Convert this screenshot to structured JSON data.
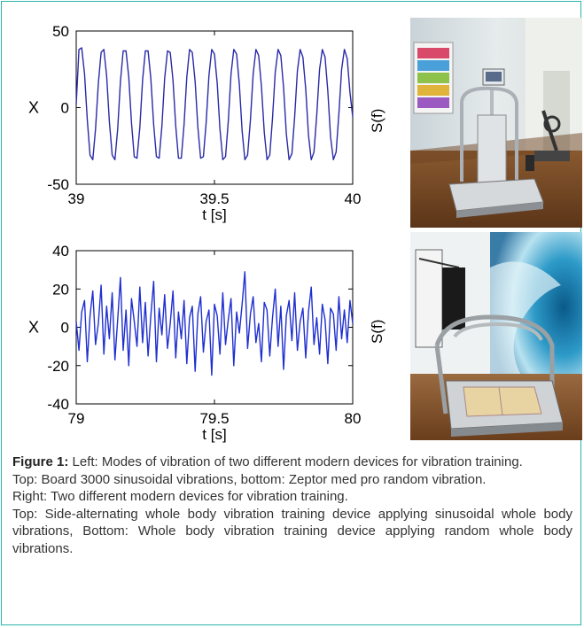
{
  "chart_data": [
    {
      "type": "line",
      "title": "",
      "xlabel": "t [s]",
      "ylabel": "X",
      "xlim": [
        39,
        40
      ],
      "ylim": [
        -50,
        50
      ],
      "xticks": [
        "39",
        "39.5",
        "40"
      ],
      "yticks": [
        "50",
        "0",
        "-50"
      ],
      "grid": false,
      "series": [
        {
          "color": "#2a2aa8",
          "x": [
            39.0,
            39.01,
            39.02,
            39.03,
            39.04,
            39.05,
            39.06,
            39.07,
            39.08,
            39.09,
            39.1,
            39.11,
            39.12,
            39.13,
            39.14,
            39.15,
            39.16,
            39.17,
            39.18,
            39.19,
            39.2,
            39.21,
            39.22,
            39.23,
            39.24,
            39.25,
            39.26,
            39.27,
            39.28,
            39.29,
            39.3,
            39.31,
            39.32,
            39.33,
            39.34,
            39.35,
            39.36,
            39.37,
            39.38,
            39.39,
            39.4,
            39.41,
            39.42,
            39.43,
            39.44,
            39.45,
            39.46,
            39.47,
            39.48,
            39.49,
            39.5,
            39.51,
            39.52,
            39.53,
            39.54,
            39.55,
            39.56,
            39.57,
            39.58,
            39.59,
            39.6,
            39.61,
            39.62,
            39.63,
            39.64,
            39.65,
            39.66,
            39.67,
            39.68,
            39.69,
            39.7,
            39.71,
            39.72,
            39.73,
            39.74,
            39.75,
            39.76,
            39.77,
            39.78,
            39.79,
            39.8,
            39.81,
            39.82,
            39.83,
            39.84,
            39.85,
            39.86,
            39.87,
            39.88,
            39.89,
            39.9,
            39.91,
            39.92,
            39.93,
            39.94,
            39.95,
            39.96,
            39.97,
            39.98,
            39.99,
            40.0
          ],
          "y": [
            2,
            38,
            39,
            22,
            -8,
            -31,
            -34,
            -14,
            16,
            36,
            38,
            21,
            -9,
            -31,
            -34,
            -14,
            17,
            37,
            37,
            20,
            -10,
            -32,
            -33,
            -13,
            18,
            37,
            37,
            19,
            -11,
            -32,
            -33,
            -12,
            19,
            37,
            36,
            18,
            -12,
            -33,
            -33,
            -11,
            20,
            38,
            36,
            17,
            -13,
            -33,
            -32,
            -10,
            21,
            38,
            35,
            16,
            -14,
            -34,
            -32,
            -9,
            22,
            38,
            35,
            15,
            -15,
            -34,
            -31,
            -8,
            22,
            38,
            34,
            14,
            -16,
            -34,
            -31,
            -7,
            23,
            38,
            34,
            13,
            -17,
            -34,
            -30,
            -6,
            24,
            38,
            33,
            12,
            -18,
            -34,
            -29,
            -5,
            25,
            38,
            33,
            11,
            -19,
            -34,
            -29,
            -4,
            25,
            38,
            32,
            10,
            -6
          ]
        }
      ]
    },
    {
      "type": "line",
      "title": "",
      "xlabel": "t [s]",
      "ylabel": "X",
      "xlim": [
        79,
        80
      ],
      "ylim": [
        -40,
        40
      ],
      "xticks": [
        "79",
        "79.5",
        "80"
      ],
      "yticks": [
        "40",
        "20",
        "0",
        "-20",
        "-40"
      ],
      "grid": false,
      "series": [
        {
          "color": "#1f2fd0",
          "x": [
            79.0,
            79.01,
            79.02,
            79.03,
            79.04,
            79.05,
            79.06,
            79.07,
            79.08,
            79.09,
            79.1,
            79.11,
            79.12,
            79.13,
            79.14,
            79.15,
            79.16,
            79.17,
            79.18,
            79.19,
            79.2,
            79.21,
            79.22,
            79.23,
            79.24,
            79.25,
            79.26,
            79.27,
            79.28,
            79.29,
            79.3,
            79.31,
            79.32,
            79.33,
            79.34,
            79.35,
            79.36,
            79.37,
            79.38,
            79.39,
            79.4,
            79.41,
            79.42,
            79.43,
            79.44,
            79.45,
            79.46,
            79.47,
            79.48,
            79.49,
            79.5,
            79.51,
            79.52,
            79.53,
            79.54,
            79.55,
            79.56,
            79.57,
            79.58,
            79.59,
            79.6,
            79.61,
            79.62,
            79.63,
            79.64,
            79.65,
            79.66,
            79.67,
            79.68,
            79.69,
            79.7,
            79.71,
            79.72,
            79.73,
            79.74,
            79.75,
            79.76,
            79.77,
            79.78,
            79.79,
            79.8,
            79.81,
            79.82,
            79.83,
            79.84,
            79.85,
            79.86,
            79.87,
            79.88,
            79.89,
            79.9,
            79.91,
            79.92,
            79.93,
            79.94,
            79.95,
            79.96,
            79.97,
            79.98,
            79.99,
            80.0
          ],
          "y": [
            3,
            -12,
            8,
            14,
            -18,
            6,
            19,
            -9,
            2,
            22,
            -14,
            11,
            -6,
            18,
            -17,
            4,
            26,
            -12,
            9,
            -20,
            15,
            3,
            -10,
            21,
            -8,
            13,
            -15,
            6,
            24,
            -18,
            10,
            -4,
            17,
            -11,
            2,
            19,
            -16,
            8,
            -6,
            14,
            -19,
            5,
            11,
            -23,
            7,
            16,
            -13,
            3,
            9,
            -25,
            12,
            6,
            -14,
            18,
            -9,
            4,
            15,
            -20,
            8,
            -3,
            12,
            29,
            -11,
            7,
            16,
            -8,
            2,
            -18,
            13,
            9,
            -15,
            5,
            20,
            -10,
            11,
            -22,
            6,
            14,
            -7,
            18,
            -12,
            3,
            10,
            -16,
            8,
            21,
            -9,
            5,
            -14,
            12,
            4,
            -19,
            10,
            7,
            -12,
            16,
            -6,
            9,
            -8,
            14,
            2
          ]
        }
      ]
    }
  ],
  "photos": [
    {
      "side_label": "S(f)",
      "description_icon": "vibration-board-device-photo"
    },
    {
      "side_label": "S(f)",
      "description_icon": "walk-in-vibration-device-photo"
    }
  ],
  "caption": {
    "label": "Figure 1:",
    "p1": " Left: Modes of vibration of two different modern devices for vibration training.",
    "p2": "Top: Board 3000 sinusoidal vibrations, bottom: Zeptor med pro random vibration.",
    "p3": "Right: Two different modern devices for vibration training.",
    "p4": "Top: Side-alternating whole body vibration training device applying sinusoidal whole body vibrations, Bottom: Whole body vibration training device applying random whole body vibrations."
  }
}
